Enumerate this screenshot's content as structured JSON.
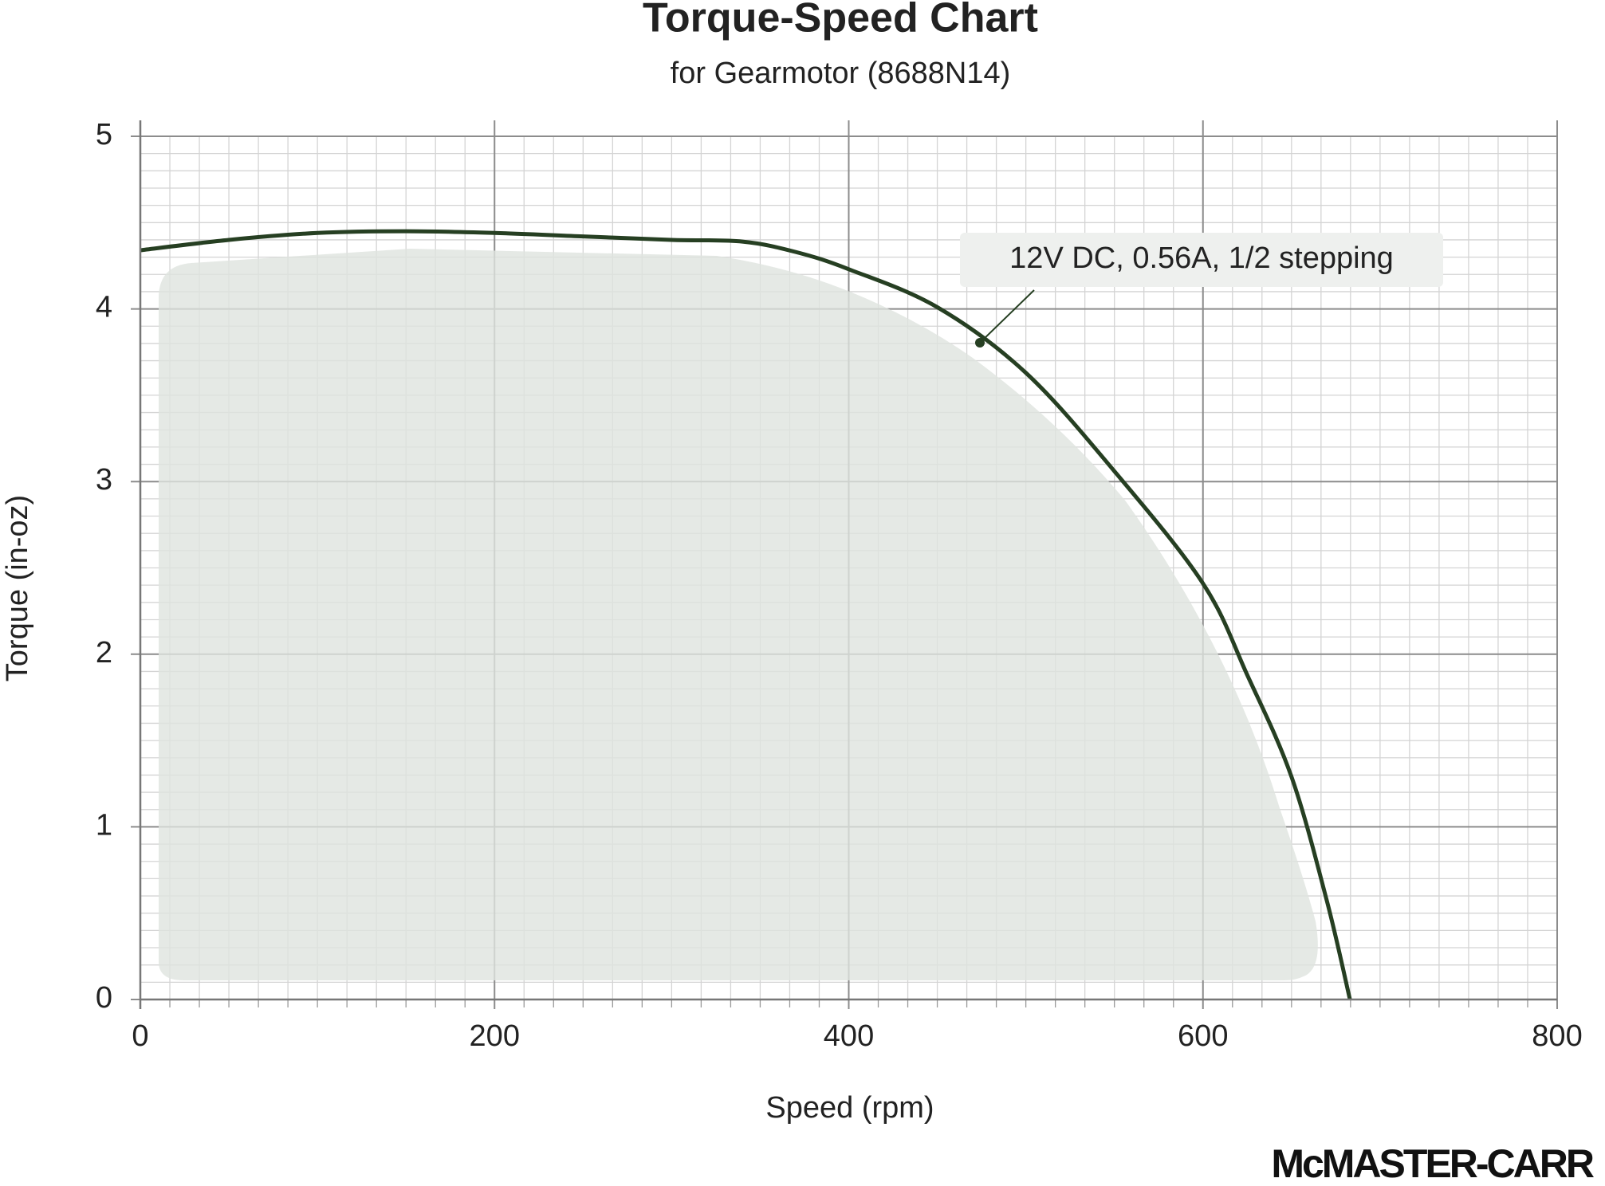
{
  "chart_data": {
    "type": "line",
    "title": "Torque-Speed Chart",
    "subtitle": "for Gearmotor (8688N14)",
    "x_label": "Speed (rpm)",
    "y_label": "Torque (in-oz)",
    "logo": "McMASTER-CARR",
    "x": [
      0,
      50,
      100,
      150,
      200,
      250,
      300,
      340,
      370,
      400,
      450,
      500,
      550,
      600,
      625,
      650,
      670,
      683
    ],
    "series": [
      {
        "name": "12V DC, 0.56A, 1/2 stepping",
        "color": "#263f22",
        "values": [
          4.34,
          4.4,
          4.44,
          4.45,
          4.44,
          4.42,
          4.4,
          4.39,
          4.33,
          4.23,
          4.01,
          3.63,
          3.06,
          2.41,
          1.88,
          1.29,
          0.57,
          0
        ]
      }
    ],
    "xlim": [
      0,
      800
    ],
    "xticks": [
      0,
      200,
      400,
      600,
      800
    ],
    "ylim": [
      0,
      5
    ],
    "yticks": [
      0,
      1,
      2,
      3,
      4,
      5
    ],
    "grid": true
  }
}
